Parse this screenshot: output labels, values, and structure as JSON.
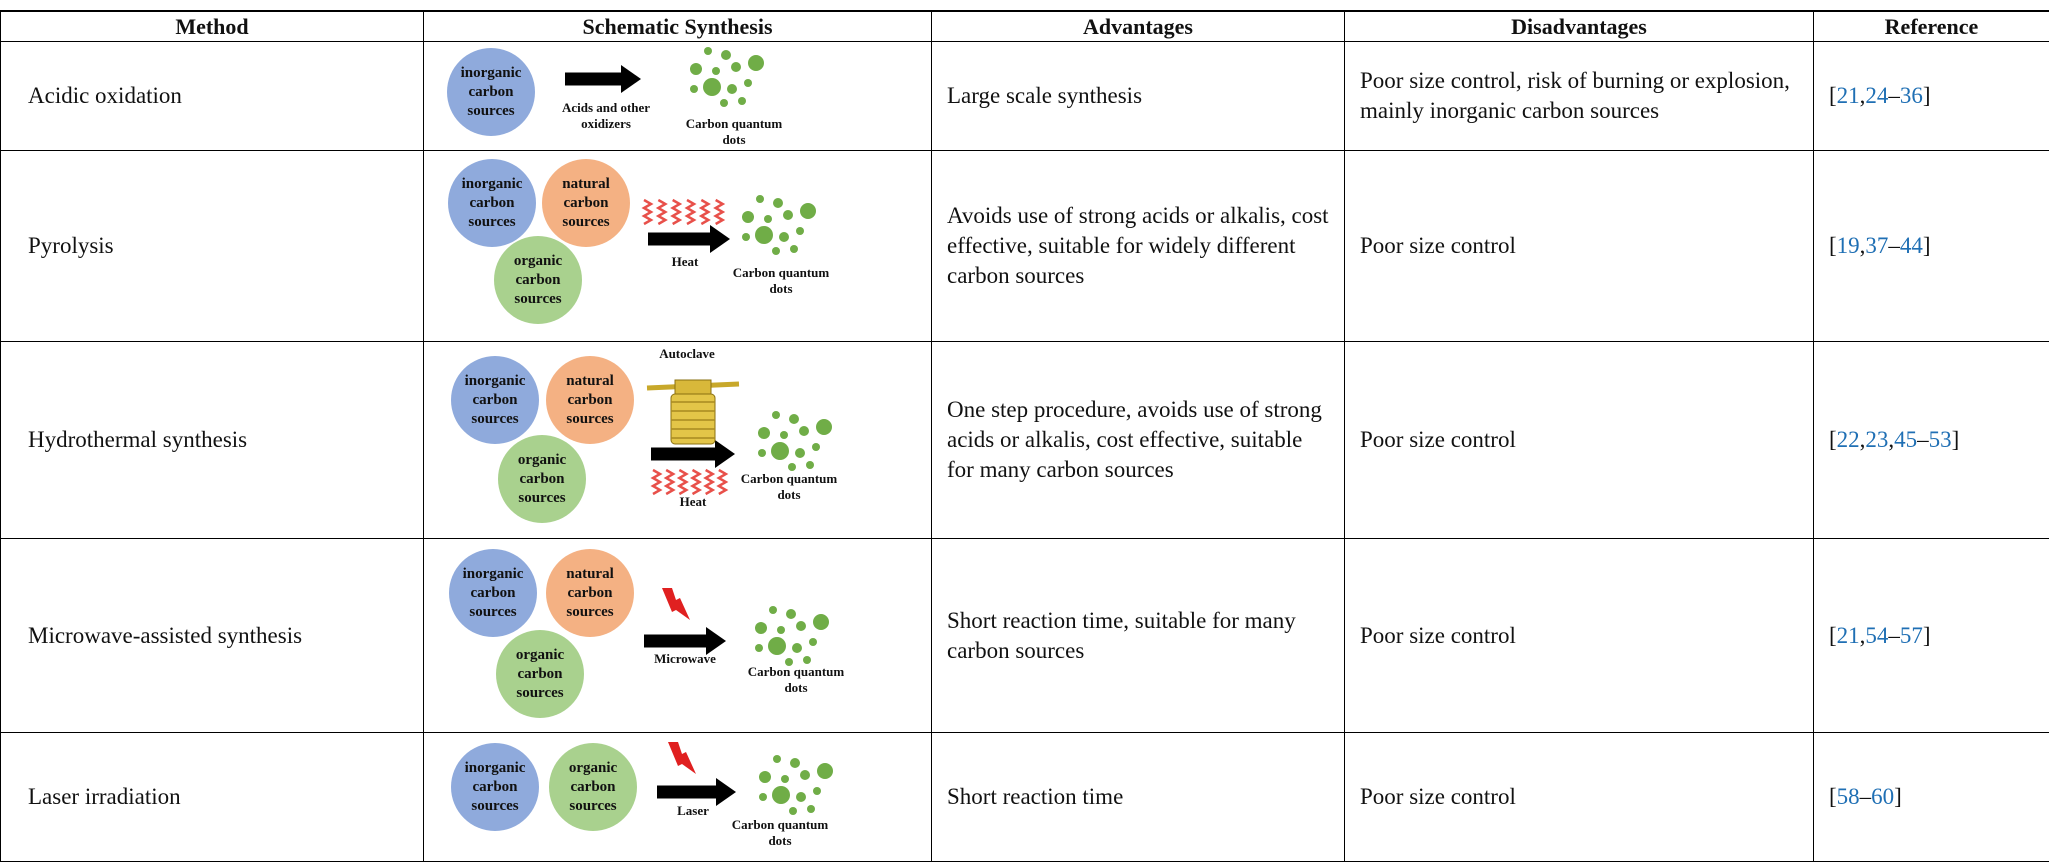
{
  "table": {
    "headers": [
      "Method",
      "Schematic Synthesis",
      "Advantages",
      "Disadvantages",
      "Reference"
    ],
    "rows": [
      {
        "method": "Acidic oxidation",
        "schematic": {
          "sources": [
            {
              "label": "inorganic carbon sources",
              "color": "#8faadc"
            }
          ],
          "arrow_label": "Acids and other oxidizers",
          "product": "Carbon quantum dots"
        },
        "advantages": "Large scale synthesis",
        "disadvantages": "Poor size control, risk of burning or explosion, mainly inorganic carbon sources",
        "reference": [
          "[",
          "21",
          ",",
          "24",
          "–",
          "36",
          "]"
        ]
      },
      {
        "method": "Pyrolysis",
        "schematic": {
          "sources": [
            {
              "label": "inorganic carbon sources",
              "color": "#8faadc"
            },
            {
              "label": "natural carbon sources",
              "color": "#f4b183"
            },
            {
              "label": "organic carbon sources",
              "color": "#a9d18e"
            }
          ],
          "arrow_label": "Heat",
          "product": "Carbon quantum dots"
        },
        "advantages": "Avoids use of strong acids or alkalis, cost effective, suitable for widely different carbon sources",
        "disadvantages": "Poor size control",
        "reference": [
          "[",
          "19",
          ",",
          "37",
          "–",
          "44",
          "]"
        ]
      },
      {
        "method": "Hydrothermal synthesis",
        "schematic": {
          "sources": [
            {
              "label": "inorganic carbon sources",
              "color": "#8faadc"
            },
            {
              "label": "natural carbon sources",
              "color": "#f4b183"
            },
            {
              "label": "organic carbon sources",
              "color": "#a9d18e"
            }
          ],
          "vessel_label": "Autoclave",
          "arrow_label": "Heat",
          "product": "Carbon quantum dots"
        },
        "advantages": "One step procedure, avoids use of strong acids or alkalis, cost effective, suitable for many carbon sources",
        "disadvantages": "Poor size control",
        "reference": [
          "[",
          "22",
          ",",
          "23",
          ",",
          "45",
          "–",
          "53",
          "]"
        ]
      },
      {
        "method": "Microwave-assisted synthesis",
        "schematic": {
          "sources": [
            {
              "label": "inorganic carbon sources",
              "color": "#8faadc"
            },
            {
              "label": "natural carbon sources",
              "color": "#f4b183"
            },
            {
              "label": "organic carbon sources",
              "color": "#a9d18e"
            }
          ],
          "arrow_label": "Microwave",
          "product": "Carbon quantum dots"
        },
        "advantages": "Short reaction time, suitable for many carbon sources",
        "disadvantages": "Poor size control",
        "reference": [
          "[",
          "21",
          ",",
          "54",
          "–",
          "57",
          "]"
        ]
      },
      {
        "method": "Laser irradiation",
        "schematic": {
          "sources": [
            {
              "label": "inorganic carbon sources",
              "color": "#8faadc"
            },
            {
              "label": "organic carbon sources",
              "color": "#a9d18e"
            }
          ],
          "arrow_label": "Laser",
          "product": "Carbon quantum dots"
        },
        "advantages": "Short reaction time",
        "disadvantages": "Poor size control",
        "reference": [
          "[",
          "58",
          "–",
          "60",
          "]"
        ]
      }
    ]
  }
}
